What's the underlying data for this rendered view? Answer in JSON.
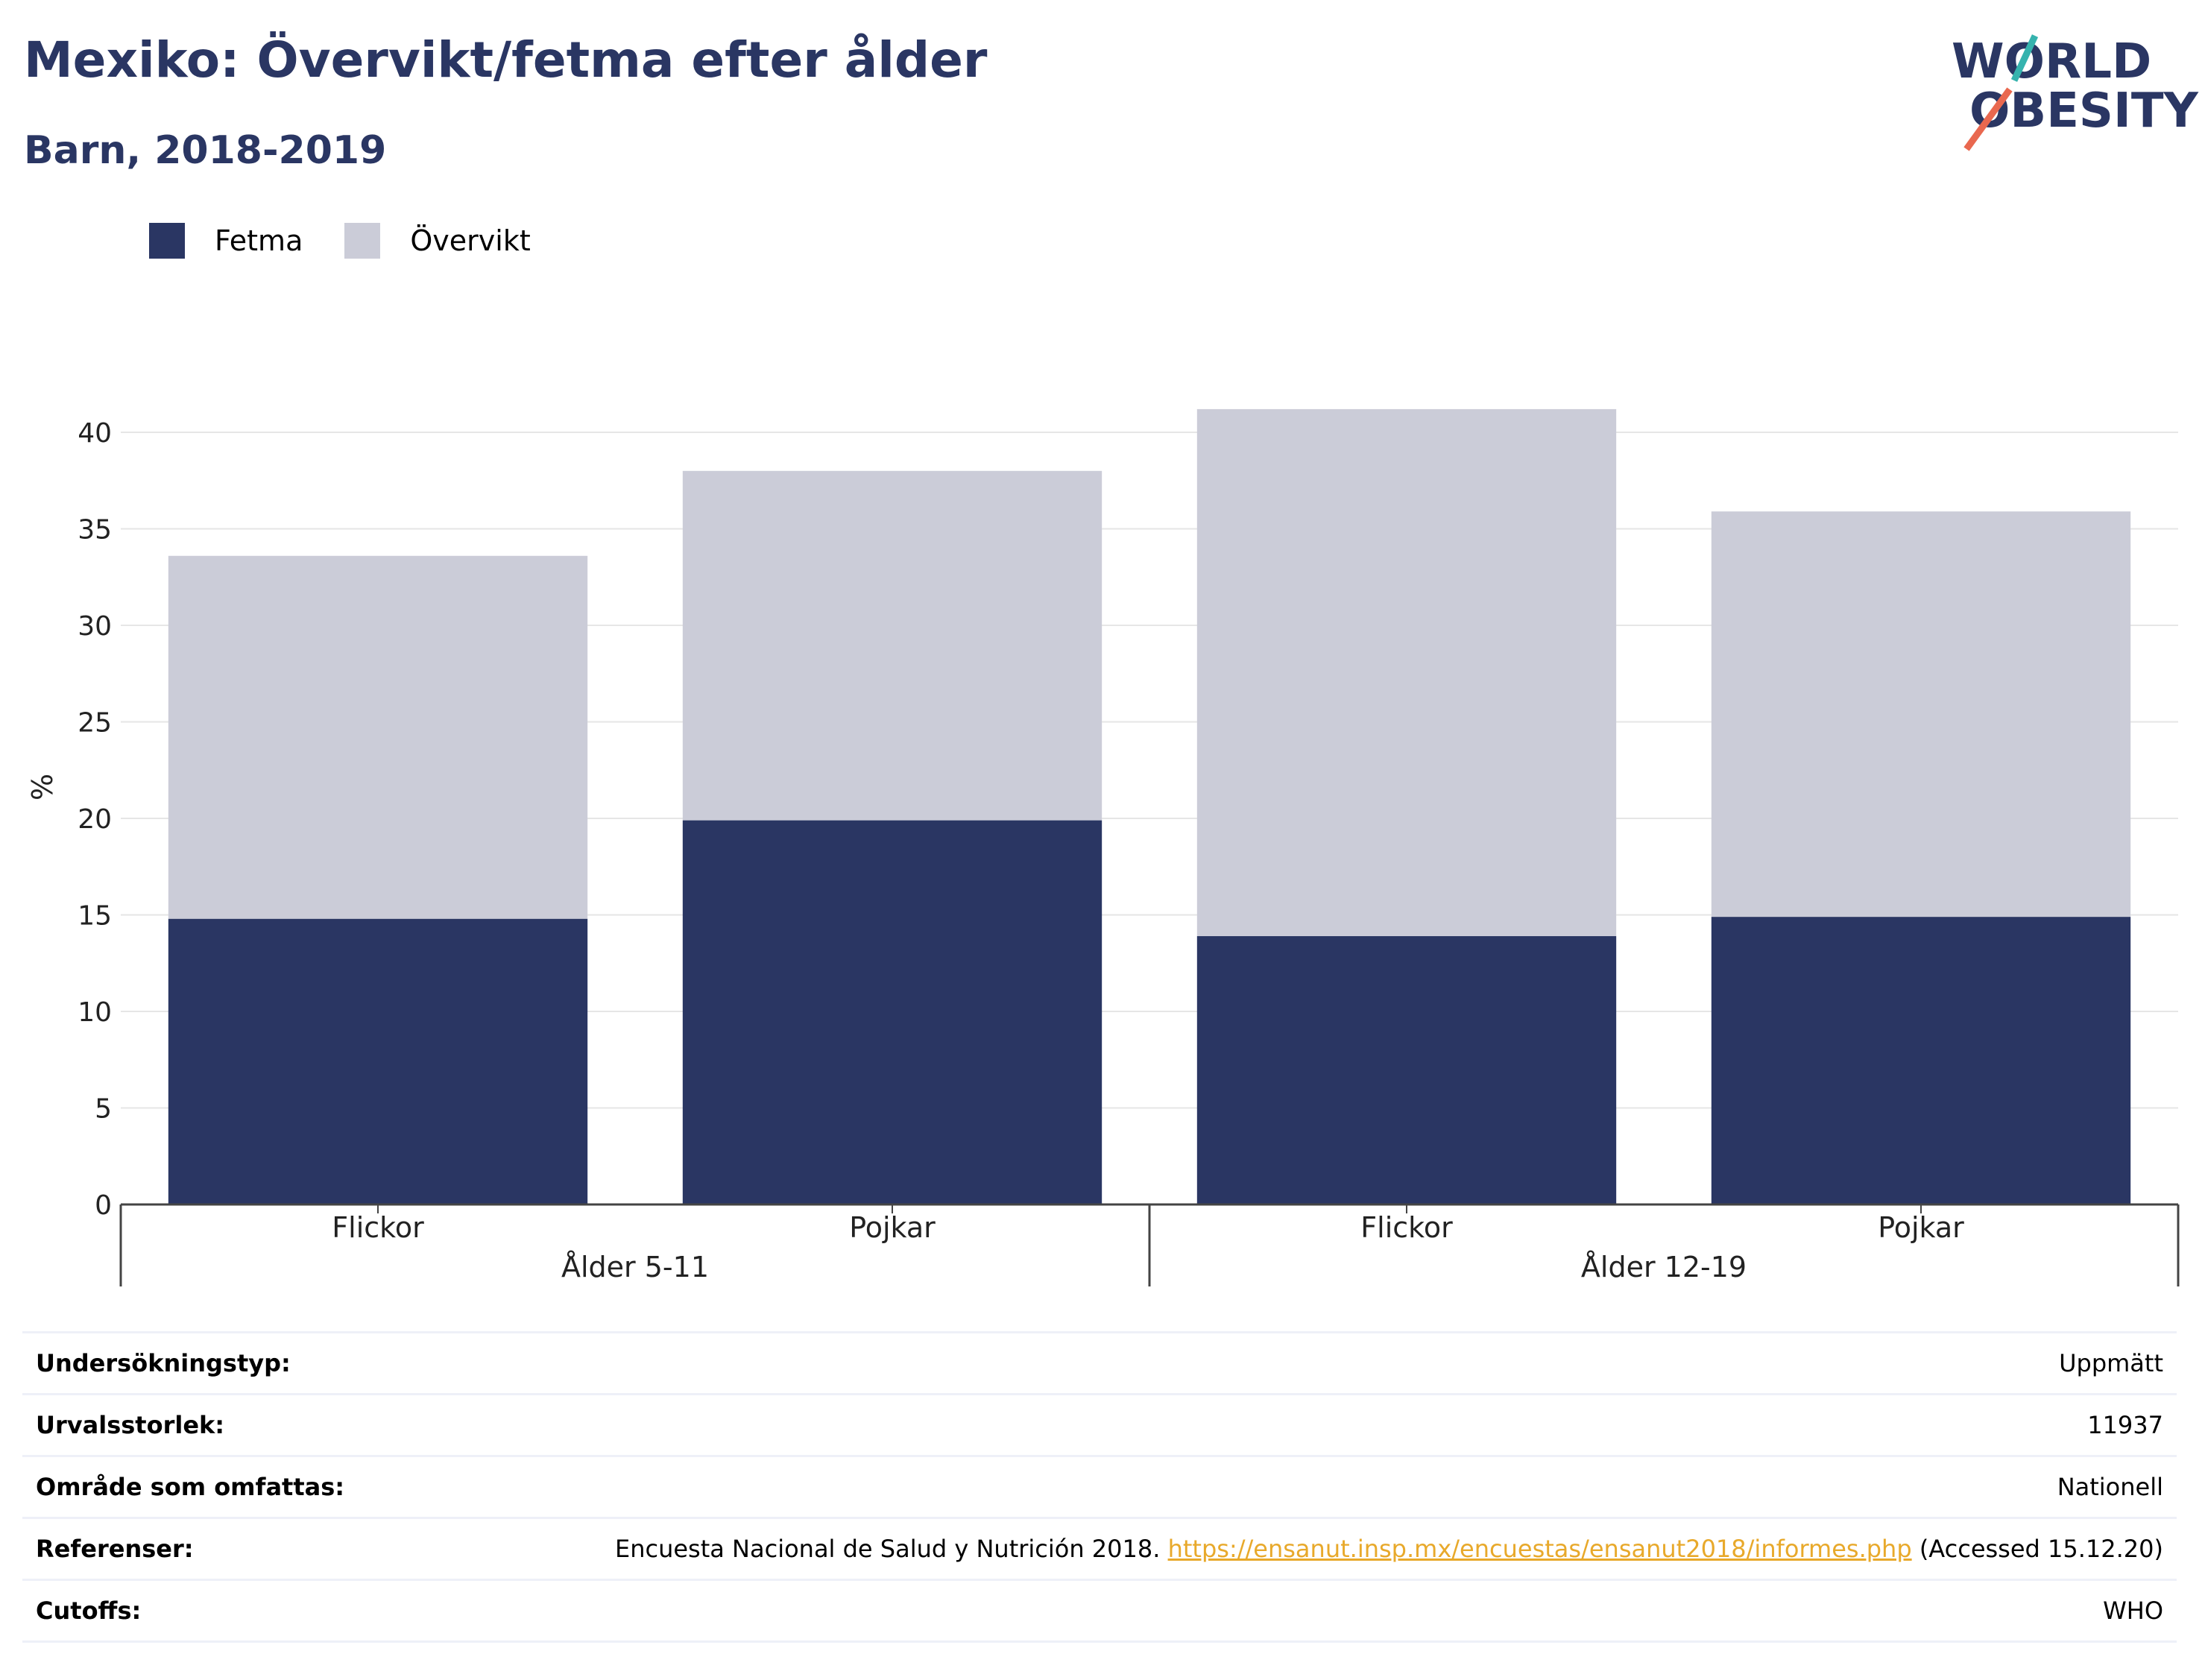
{
  "header": {
    "title": "Mexiko: Övervikt/fetma efter ålder",
    "subtitle": "Barn, 2018-2019"
  },
  "logo": {
    "line1": "WORLD",
    "line2": "OBESITY",
    "colors": {
      "text": "#2a3663",
      "accent_teal": "#35b3ae",
      "accent_orange": "#e9684f"
    }
  },
  "colors": {
    "fetma": "#2a3663",
    "overvikt": "#cbccd8",
    "grid": "#e6e6e6",
    "axis": "#444444",
    "title": "#2a3663",
    "link": "#e8a92b"
  },
  "chart_data": {
    "type": "bar",
    "stacked": true,
    "ylabel": "%",
    "xlabel": "",
    "ylim": [
      0,
      42
    ],
    "yticks": [
      0,
      5,
      10,
      15,
      20,
      25,
      30,
      35,
      40
    ],
    "grid": true,
    "legend_position": "top-left",
    "categories": [
      "Flickor",
      "Pojkar",
      "Flickor",
      "Pojkar"
    ],
    "groups": [
      {
        "label": "Ålder 5-11",
        "categories": [
          "Flickor",
          "Pojkar"
        ]
      },
      {
        "label": "Ålder 12-19",
        "categories": [
          "Flickor",
          "Pojkar"
        ]
      }
    ],
    "series": [
      {
        "name": "Fetma",
        "color": "#2a3663",
        "values": [
          14.8,
          19.9,
          13.9,
          14.9
        ]
      },
      {
        "name": "Övervikt",
        "color": "#cbccd8",
        "values": [
          18.8,
          18.1,
          27.3,
          21.0
        ]
      }
    ]
  },
  "info_table": {
    "rows": [
      {
        "label": "Undersökningstyp:",
        "value": "Uppmätt"
      },
      {
        "label": "Urvalsstorlek:",
        "value": "11937"
      },
      {
        "label": "Område som omfattas:",
        "value": "Nationell"
      },
      {
        "label": "Referenser:",
        "value_prefix": "Encuesta Nacional de Salud y Nutrición 2018. ",
        "value_link": "https://ensanut.insp.mx/encuestas/ensanut2018/informes.php",
        "value_suffix": " (Accessed 15.12.20)"
      },
      {
        "label": "Cutoffs:",
        "value": "WHO"
      }
    ]
  }
}
